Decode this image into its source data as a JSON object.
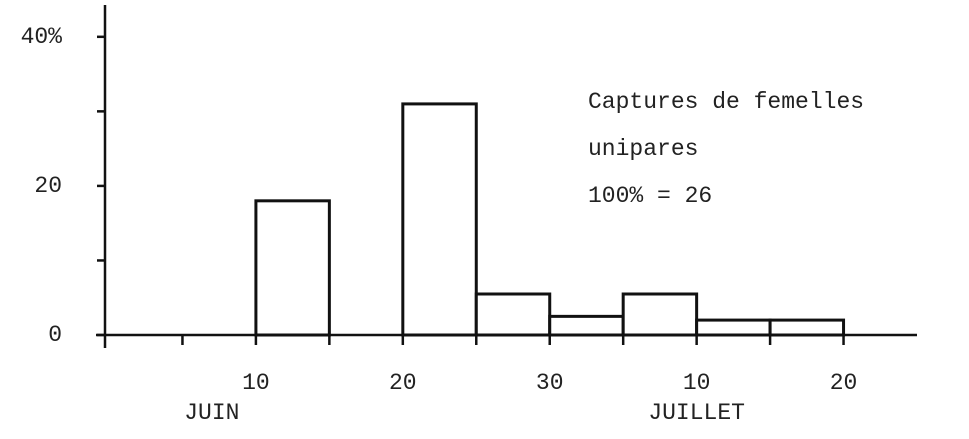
{
  "chart_data": {
    "type": "histogram",
    "bins": [
      10,
      15,
      20,
      25,
      30,
      35,
      40,
      45,
      50
    ],
    "counts": [
      18,
      0,
      31,
      5.5,
      2.5,
      5.5,
      2,
      2
    ],
    "xlim": [
      0,
      55
    ],
    "xticks": [
      10,
      20,
      30,
      {
        "value": 40,
        "label": "10"
      },
      {
        "value": 50,
        "label": "20"
      }
    ],
    "xminor_ticks": [
      5,
      15,
      25,
      35,
      45
    ],
    "month_labels": [
      {
        "value": 7,
        "label": "JUIN"
      },
      {
        "value": 40,
        "label": "JUILLET"
      }
    ],
    "ylim": [
      0,
      44
    ],
    "yticks": [
      0,
      20,
      {
        "value": 40,
        "label": "40%"
      }
    ],
    "yminor_ticks": [
      10,
      30
    ],
    "annotation": [
      "Captures de femelles",
      "unipares",
      "100% = 26"
    ],
    "color": "#ffffff",
    "edge_color": "#111111"
  }
}
